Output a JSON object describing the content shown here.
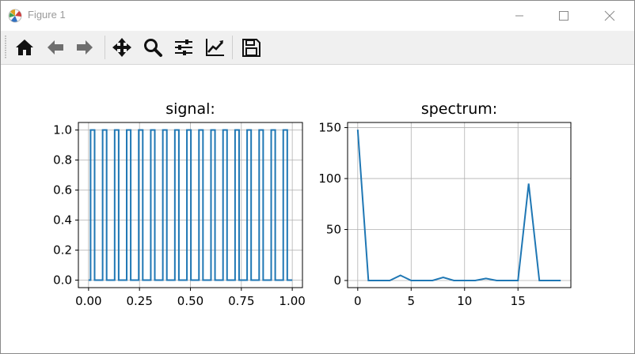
{
  "window": {
    "title": "Figure 1"
  },
  "icons": {
    "app": "matplotlib-logo-icon",
    "minimize": "minimize-icon",
    "maximize": "maximize-icon",
    "close": "close-icon",
    "home": "home-icon",
    "back": "arrow-left-icon",
    "forward": "arrow-right-icon",
    "pan": "move-arrows-icon",
    "zoom": "magnifier-icon",
    "configure": "sliders-icon",
    "edit": "chart-line-icon",
    "save": "floppy-disk-icon"
  },
  "colors": {
    "line": "#1f77b4",
    "grid": "#b0b0b0",
    "toolbar_bg": "#f0f0f0"
  },
  "chart_data": [
    {
      "type": "line",
      "title": "signal:",
      "xlabel": "",
      "ylabel": "",
      "xlim": [
        -0.05,
        1.05
      ],
      "ylim": [
        -0.05,
        1.05
      ],
      "xticks": [
        0.0,
        0.25,
        0.5,
        0.75,
        1.0
      ],
      "xtick_labels": [
        "0.00",
        "0.25",
        "0.50",
        "0.75",
        "1.00"
      ],
      "yticks": [
        0.0,
        0.2,
        0.4,
        0.6,
        0.8,
        1.0
      ],
      "ytick_labels": [
        "0.0",
        "0.2",
        "0.4",
        "0.6",
        "0.8",
        "1.0"
      ],
      "grid": true,
      "series": [
        {
          "x": [
            0,
            0.0099,
            0.0099,
            0.0296,
            0.0296,
            0.069,
            0.069,
            0.0887,
            0.0887,
            0.1281,
            0.1281,
            0.1478,
            0.1478,
            0.1872,
            0.1872,
            0.2069,
            0.2069,
            0.2463,
            0.2463,
            0.266,
            0.266,
            0.3054,
            0.3054,
            0.3251,
            0.3251,
            0.3645,
            0.3645,
            0.3842,
            0.3842,
            0.4236,
            0.4236,
            0.4433,
            0.4433,
            0.4828,
            0.4828,
            0.5025,
            0.5025,
            0.5419,
            0.5419,
            0.5616,
            0.5616,
            0.601,
            0.601,
            0.6207,
            0.6207,
            0.6601,
            0.6601,
            0.6798,
            0.6798,
            0.7192,
            0.7192,
            0.7389,
            0.7389,
            0.7783,
            0.7783,
            0.798,
            0.798,
            0.8374,
            0.8374,
            0.8571,
            0.8571,
            0.8966,
            0.8966,
            0.9163,
            0.9163,
            0.9557,
            0.9557,
            0.9754,
            0.9754,
            1.0
          ],
          "y": [
            0,
            0,
            1,
            1,
            0,
            0,
            1,
            1,
            0,
            0,
            1,
            1,
            0,
            0,
            1,
            1,
            0,
            0,
            1,
            1,
            0,
            0,
            1,
            1,
            0,
            0,
            1,
            1,
            0,
            0,
            1,
            1,
            0,
            0,
            1,
            1,
            0,
            0,
            1,
            1,
            0,
            0,
            1,
            1,
            0,
            0,
            1,
            1,
            0,
            0,
            1,
            1,
            0,
            0,
            1,
            1,
            0,
            0,
            1,
            1,
            0,
            0,
            1,
            1,
            0,
            0,
            1,
            1,
            0,
            0
          ]
        }
      ]
    },
    {
      "type": "line",
      "title": "spectrum:",
      "xlabel": "",
      "ylabel": "",
      "xlim": [
        -0.95,
        19.95
      ],
      "ylim": [
        -7,
        155
      ],
      "xticks": [
        0,
        5,
        10,
        15
      ],
      "xtick_labels": [
        "0",
        "5",
        "10",
        "15"
      ],
      "yticks": [
        0,
        50,
        100,
        150
      ],
      "ytick_labels": [
        "0",
        "50",
        "100",
        "150"
      ],
      "grid": true,
      "series": [
        {
          "x": [
            0,
            1,
            2,
            3,
            4,
            5,
            6,
            7,
            8,
            9,
            10,
            11,
            12,
            13,
            14,
            15,
            16,
            17,
            18,
            19
          ],
          "y": [
            148,
            0,
            0,
            0,
            5,
            0,
            0,
            0,
            3,
            0,
            0,
            0,
            2,
            0,
            0,
            0,
            95,
            0,
            0,
            0
          ]
        }
      ]
    }
  ]
}
